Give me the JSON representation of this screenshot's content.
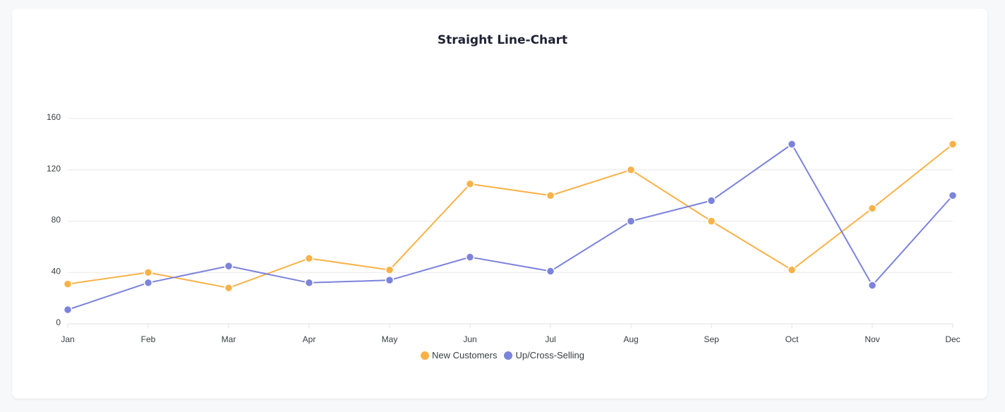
{
  "chart_data": {
    "type": "line",
    "title": "Straight Line-Chart",
    "categories": [
      "Jan",
      "Feb",
      "Mar",
      "Apr",
      "May",
      "Jun",
      "Jul",
      "Aug",
      "Sep",
      "Oct",
      "Nov",
      "Dec"
    ],
    "series": [
      {
        "name": "New Customers",
        "color": "#f9b248",
        "values": [
          31,
          40,
          28,
          51,
          42,
          109,
          100,
          120,
          80,
          42,
          90,
          140
        ]
      },
      {
        "name": "Up/Cross-Selling",
        "color": "#7b83db",
        "values": [
          11,
          32,
          45,
          32,
          34,
          52,
          41,
          80,
          96,
          140,
          30,
          100
        ]
      }
    ],
    "yticks": [
      "0",
      "40",
      "80",
      "120",
      "160"
    ],
    "ylim": [
      0,
      160
    ],
    "grid": true,
    "legend_position": "bottom"
  }
}
